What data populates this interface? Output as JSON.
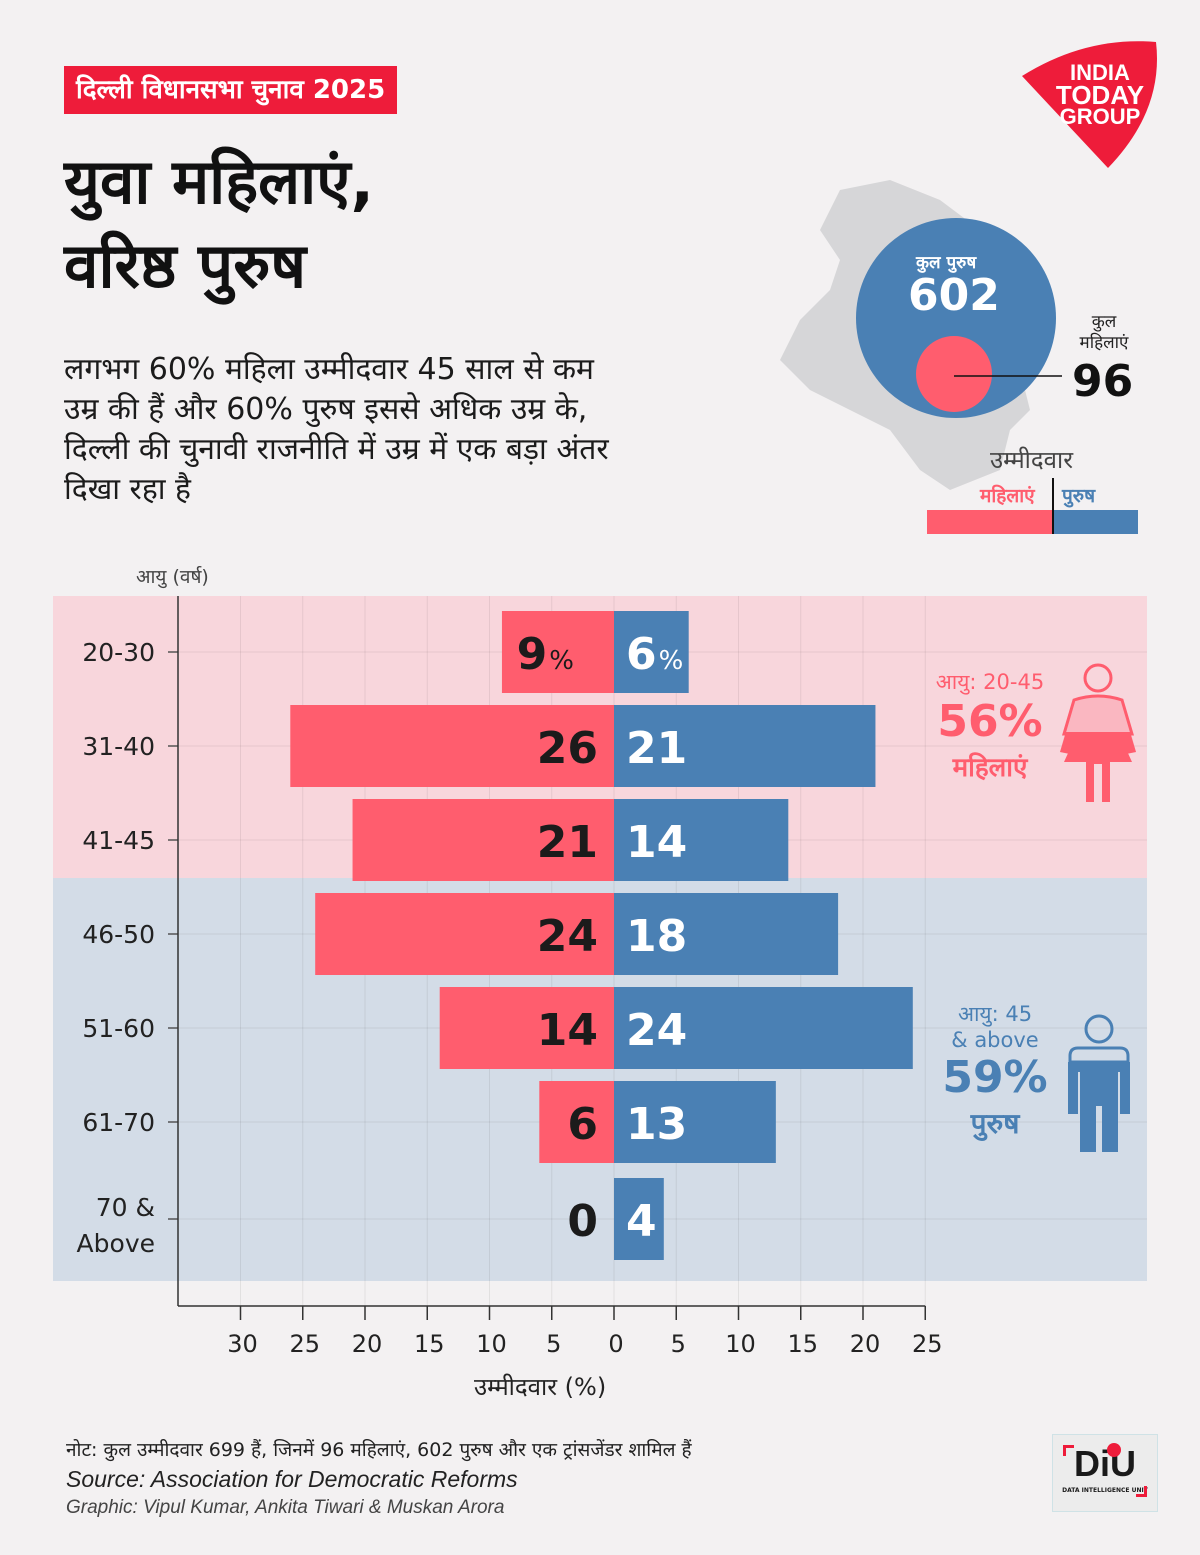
{
  "header": {
    "kicker": "दिल्ली विधानसभा चुनाव 2025",
    "title_line1": "युवा महिलाएं,",
    "title_line2": "वरिष्ठ पुरुष",
    "subtitle_lines": [
      "लगभग 60% महिला उम्मीदवार 45 साल से कम",
      "उम्र की हैं और 60% पुरुष इससे अधिक उम्र के,",
      "दिल्ली की चुनावी राजनीति में उम्र में एक बड़ा अंतर",
      "दिखा रहा है"
    ]
  },
  "logo": {
    "line1": "INDIA",
    "line2": "TODAY",
    "line3": "GROUP"
  },
  "totals": {
    "male_label": "कुल पुरुष",
    "male_value": "602",
    "female_label_line1": "कुल",
    "female_label_line2": "महिलाएं",
    "female_value": "96"
  },
  "legend": {
    "title": "उम्मीदवार",
    "female": "महिलाएं",
    "male": "पुरुष"
  },
  "colors": {
    "female": "#ff5d6e",
    "male": "#4a80b4",
    "female_band": "#f8d6dc",
    "male_band": "#d3dce7",
    "kicker_bg": "#ee1c3a"
  },
  "callouts": {
    "female": {
      "age": "आयु: 20-45",
      "pct": "56%",
      "label": "महिलाएं"
    },
    "male": {
      "age_line1": "आयु: 45",
      "age_line2": "& above",
      "pct": "59%",
      "label": "पुरुष"
    }
  },
  "chart_data": {
    "type": "bar",
    "orientation": "horizontal-diverging",
    "ylabel": "आयु (वर्ष)",
    "xlabel": "उम्मीदवार (%)",
    "categories": [
      "20-30",
      "31-40",
      "41-45",
      "46-50",
      "51-60",
      "61-70",
      "70 & Above"
    ],
    "category_lines": [
      [
        "20-30"
      ],
      [
        "31-40"
      ],
      [
        "41-45"
      ],
      [
        "46-50"
      ],
      [
        "51-60"
      ],
      [
        "61-70"
      ],
      [
        "70 &",
        "Above"
      ]
    ],
    "series": [
      {
        "name": "महिलाएं",
        "direction": "left",
        "values": [
          9,
          26,
          21,
          24,
          14,
          6,
          0
        ],
        "labels": [
          "9",
          "26",
          "21",
          "24",
          "14",
          "6",
          "0"
        ]
      },
      {
        "name": "पुरुष",
        "direction": "right",
        "values": [
          6,
          21,
          14,
          18,
          24,
          13,
          4
        ],
        "labels": [
          "6",
          "21",
          "14",
          "18",
          "24",
          "13",
          "4"
        ]
      }
    ],
    "first_row_suffix": "%",
    "x_ticks_left": [
      "30",
      "25",
      "20",
      "15",
      "10",
      "5"
    ],
    "x_ticks_right": [
      "0",
      "5",
      "10",
      "15",
      "20",
      "25"
    ],
    "x_tick_values_left": [
      30,
      25,
      20,
      15,
      10,
      5
    ],
    "x_tick_values_right": [
      0,
      5,
      10,
      15,
      20,
      25
    ],
    "xlim_left": 35,
    "xlim_right": 25,
    "grid": true,
    "bands": [
      {
        "from_category": 0,
        "to_category": 2,
        "group": "female"
      },
      {
        "from_category": 3,
        "to_category": 6,
        "group": "male"
      }
    ]
  },
  "footer": {
    "note": "नोट: कुल उम्मीदवार 699 हैं, जिनमें 96 महिलाएं, 602 पुरुष और एक ट्रांसजेंडर शामिल हैं",
    "source": "Source: Association for Democratic Reforms",
    "graphic": "Graphic: Vipul Kumar, Ankita Tiwari & Muskan Arora",
    "diu_logo": "DiU",
    "diu_sub": "DATA INTELLIGENCE UNIT"
  }
}
